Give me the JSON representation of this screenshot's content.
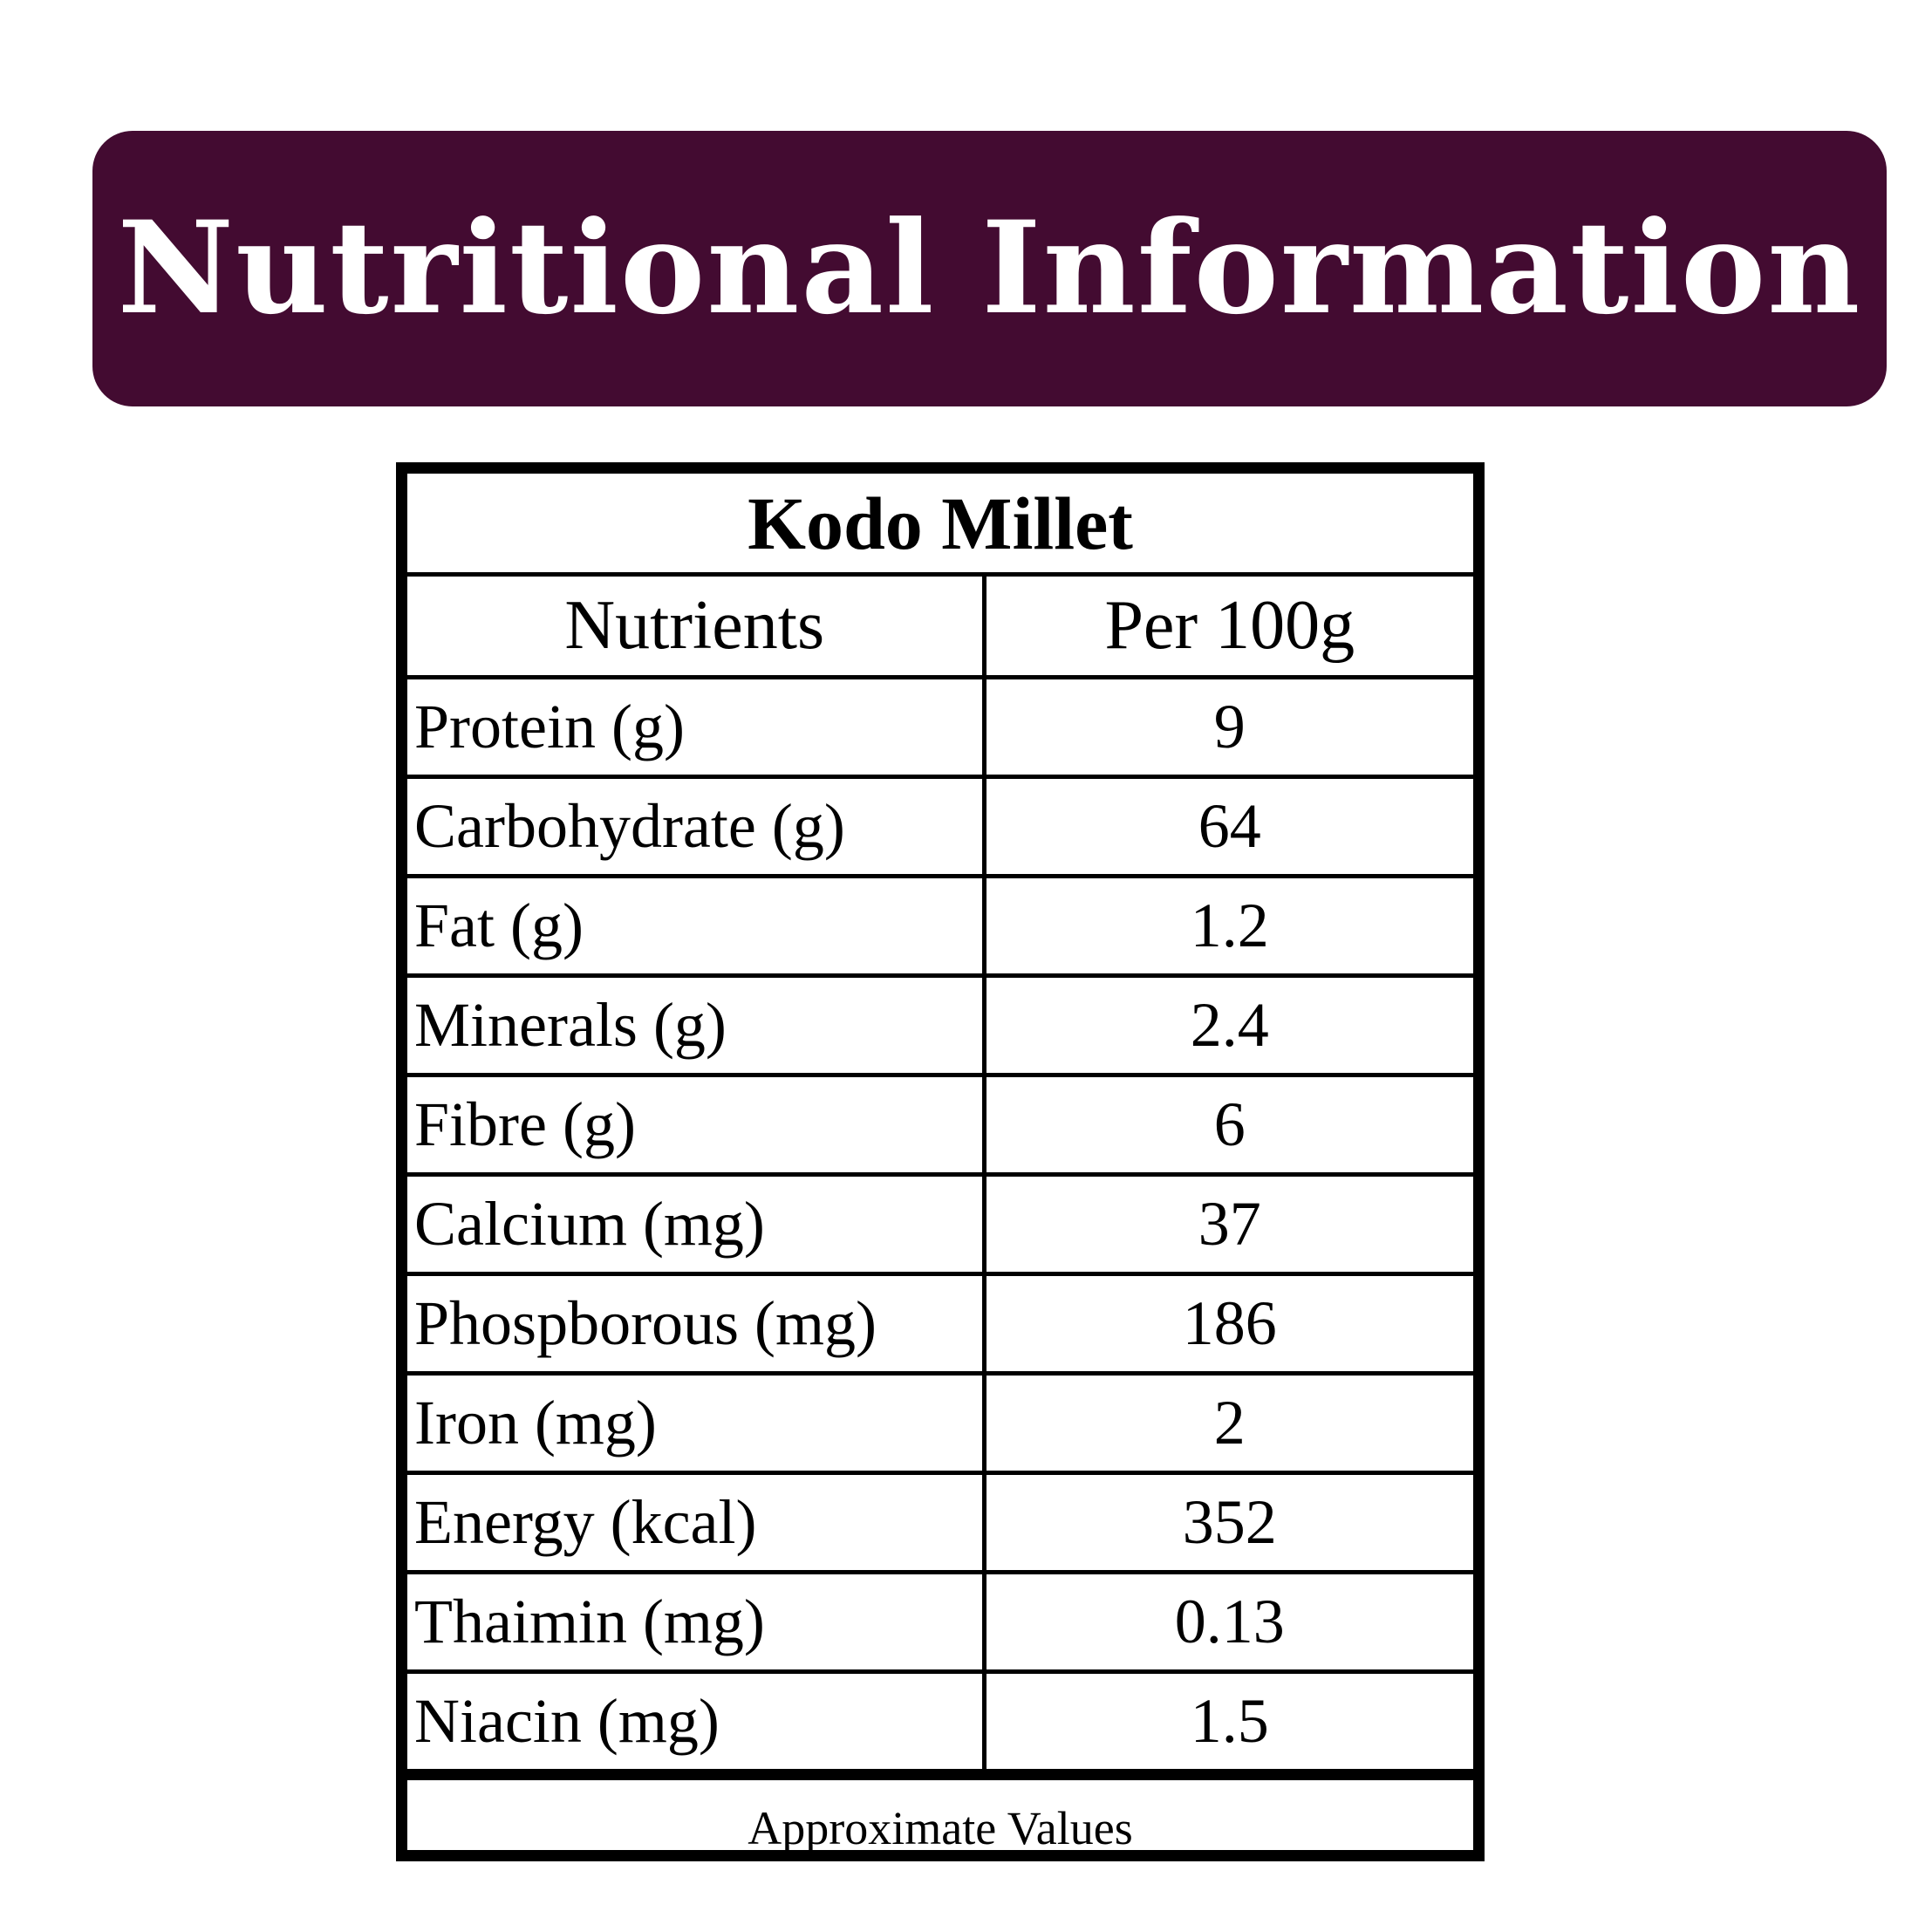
{
  "header": {
    "title": "Nutritional Information",
    "banner_color": "#430b31"
  },
  "table": {
    "caption": "Kodo Millet",
    "columns": [
      "Nutrients",
      "Per 100g"
    ],
    "rows": [
      {
        "nutrient": "Protein (g)",
        "value": "9"
      },
      {
        "nutrient": "Carbohydrate (g)",
        "value": "64"
      },
      {
        "nutrient": "Fat (g)",
        "value": "1.2"
      },
      {
        "nutrient": "Minerals (g)",
        "value": "2.4"
      },
      {
        "nutrient": "Fibre (g)",
        "value": "6"
      },
      {
        "nutrient": "Calcium (mg)",
        "value": "37"
      },
      {
        "nutrient": "Phospborous (mg)",
        "value": "186"
      },
      {
        "nutrient": "Iron (mg)",
        "value": "2"
      },
      {
        "nutrient": "Energy (kcal)",
        "value": "352"
      },
      {
        "nutrient": "Thaimin (mg)",
        "value": "0.13"
      },
      {
        "nutrient": "Niacin (mg)",
        "value": "1.5"
      }
    ],
    "footer": "Approximate Values"
  }
}
